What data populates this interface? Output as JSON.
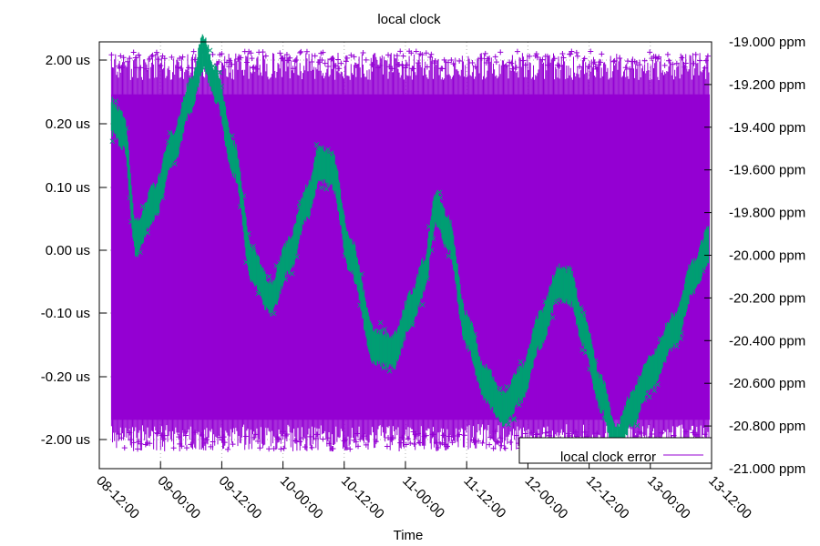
{
  "chart_data": {
    "type": "scatter",
    "title": "local clock",
    "xlabel": "Time",
    "ylabel_left": "",
    "ylabel_right": "",
    "grid": true,
    "legend_position": "bottom-right",
    "x_ticks": [
      "08-12:00",
      "09-00:00",
      "09-12:00",
      "10-00:00",
      "10-12:00",
      "11-00:00",
      "11-12:00",
      "12-00:00",
      "12-12:00",
      "13-00:00",
      "13-12:00"
    ],
    "x_range_days": [
      8.5,
      13.5
    ],
    "y_left_ticks": [
      "2.00 us",
      "0.20 us",
      "0.10 us",
      "0.00 us",
      "-0.10 us",
      "-0.20 us",
      "-2.00 us"
    ],
    "y_left_scale": "symmetric-log",
    "y_right_ticks": [
      "-19.000 ppm",
      "-19.200 ppm",
      "-19.400 ppm",
      "-19.600 ppm",
      "-19.800 ppm",
      "-20.000 ppm",
      "-20.200 ppm",
      "-20.400 ppm",
      "-20.600 ppm",
      "-20.800 ppm",
      "-21.000 ppm"
    ],
    "y_right_range": [
      -21.0,
      -19.0
    ],
    "series": [
      {
        "name": "local clock error",
        "axis": "left",
        "color": "#9400d3",
        "marker": "+",
        "x_range": [
          8.6,
          13.5
        ],
        "envelope_upper_us": 2.0,
        "envelope_lower_us": -2.0,
        "dense_band_upper_us": 0.3,
        "dense_band_lower_us": -0.3
      },
      {
        "name": "",
        "axis": "right",
        "color": "#009e73",
        "marker": "x",
        "points": [
          {
            "x": 8.6,
            "y": -19.35
          },
          {
            "x": 8.7,
            "y": -19.42
          },
          {
            "x": 8.8,
            "y": -19.92
          },
          {
            "x": 8.95,
            "y": -19.75
          },
          {
            "x": 9.1,
            "y": -19.5
          },
          {
            "x": 9.25,
            "y": -19.25
          },
          {
            "x": 9.35,
            "y": -19.05
          },
          {
            "x": 9.45,
            "y": -19.2
          },
          {
            "x": 9.6,
            "y": -19.55
          },
          {
            "x": 9.75,
            "y": -20.05
          },
          {
            "x": 9.9,
            "y": -20.2
          },
          {
            "x": 10.05,
            "y": -20.0
          },
          {
            "x": 10.2,
            "y": -19.75
          },
          {
            "x": 10.3,
            "y": -19.57
          },
          {
            "x": 10.4,
            "y": -19.6
          },
          {
            "x": 10.55,
            "y": -20.0
          },
          {
            "x": 10.75,
            "y": -20.43
          },
          {
            "x": 10.9,
            "y": -20.45
          },
          {
            "x": 11.05,
            "y": -20.25
          },
          {
            "x": 11.15,
            "y": -20.1
          },
          {
            "x": 11.25,
            "y": -19.78
          },
          {
            "x": 11.35,
            "y": -19.9
          },
          {
            "x": 11.5,
            "y": -20.35
          },
          {
            "x": 11.65,
            "y": -20.6
          },
          {
            "x": 11.8,
            "y": -20.72
          },
          {
            "x": 11.95,
            "y": -20.6
          },
          {
            "x": 12.1,
            "y": -20.35
          },
          {
            "x": 12.25,
            "y": -20.13
          },
          {
            "x": 12.35,
            "y": -20.15
          },
          {
            "x": 12.45,
            "y": -20.35
          },
          {
            "x": 12.6,
            "y": -20.65
          },
          {
            "x": 12.72,
            "y": -20.88
          },
          {
            "x": 12.85,
            "y": -20.72
          },
          {
            "x": 13.0,
            "y": -20.55
          },
          {
            "x": 13.2,
            "y": -20.35
          },
          {
            "x": 13.35,
            "y": -20.1
          },
          {
            "x": 13.48,
            "y": -19.95
          }
        ]
      }
    ]
  }
}
